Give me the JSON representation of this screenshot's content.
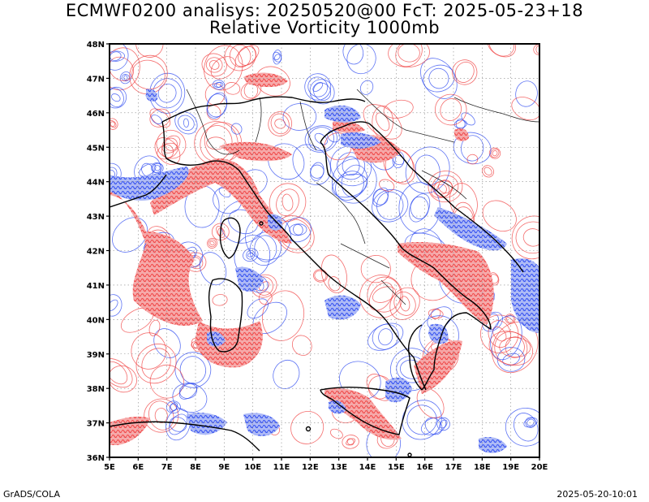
{
  "title": {
    "line1": "ECMWF0200 analisys: 20250520@00 FcT: 2025-05-23+18",
    "line2": "Relative Vorticity 1000mb"
  },
  "map": {
    "lon_range": [
      5,
      20
    ],
    "lat_range": [
      36,
      48
    ],
    "lon_ticks": [
      "5E",
      "6E",
      "7E",
      "8E",
      "9E",
      "10E",
      "11E",
      "12E",
      "13E",
      "14E",
      "15E",
      "16E",
      "17E",
      "18E",
      "19E",
      "20E"
    ],
    "lat_ticks": [
      "36N",
      "37N",
      "38N",
      "39N",
      "40N",
      "41N",
      "42N",
      "43N",
      "44N",
      "45N",
      "46N",
      "47N",
      "48N"
    ],
    "grid": "dotted",
    "colors": {
      "positive_vorticity": "#f03c3c",
      "negative_vorticity": "#2846f0",
      "coastline": "#000000",
      "frame": "#000000"
    }
  },
  "footer": {
    "credit": "GrADS/COLA",
    "timestamp": "2025-05-20-10:01"
  }
}
